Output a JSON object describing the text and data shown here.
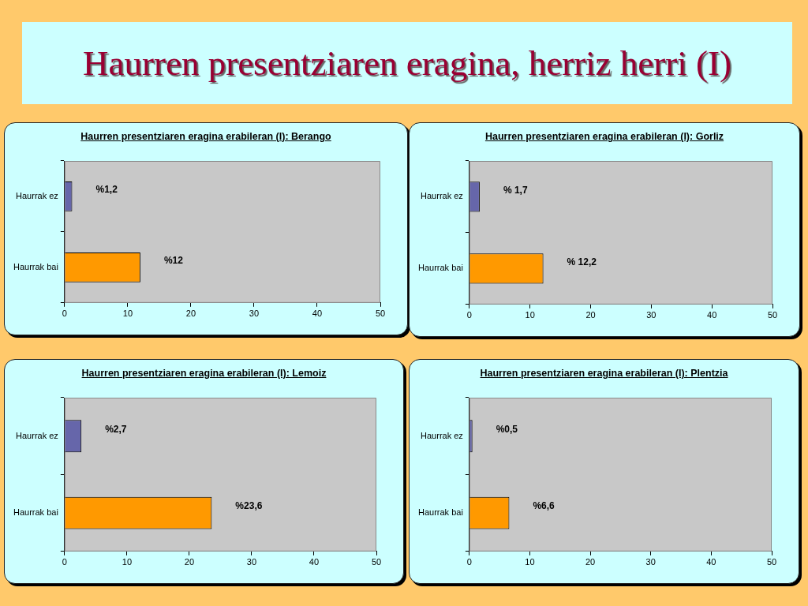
{
  "chart_data": [
    {
      "type": "other",
      "title": "Haurren presentziaren eragina, herriz herri (I)"
    },
    {
      "type": "bar",
      "orientation": "horizontal",
      "title": "Haurren presentziaren eragina erabileran (I): Berango",
      "categories": [
        "Haurrak ez",
        "Haurrak bai"
      ],
      "values": [
        1.2,
        12
      ],
      "colors": [
        "#6666aa",
        "#ff9900"
      ],
      "value_labels": [
        "%1,2",
        "%12"
      ],
      "xlim": [
        0,
        50
      ],
      "xticks": [
        0,
        10,
        20,
        30,
        40,
        50
      ]
    },
    {
      "type": "bar",
      "orientation": "horizontal",
      "title": "Haurren presentziaren eragina erabileran (I): Gorliz",
      "categories": [
        "Haurrak ez",
        "Haurrak bai"
      ],
      "values": [
        1.7,
        12.2
      ],
      "colors": [
        "#6666aa",
        "#ff9900"
      ],
      "value_labels": [
        "% 1,7",
        "% 12,2"
      ],
      "xlim": [
        0,
        50
      ],
      "xticks": [
        0,
        10,
        20,
        30,
        40,
        50
      ]
    },
    {
      "type": "bar",
      "orientation": "horizontal",
      "title": "Haurren presentziaren eragina erabileran (I): Lemoiz",
      "categories": [
        "Haurrak ez",
        "Haurrak bai"
      ],
      "values": [
        2.7,
        23.6
      ],
      "colors": [
        "#6666aa",
        "#ff9900"
      ],
      "value_labels": [
        "%2,7",
        "%23,6"
      ],
      "xlim": [
        0,
        50
      ],
      "xticks": [
        0,
        10,
        20,
        30,
        40,
        50
      ]
    },
    {
      "type": "bar",
      "orientation": "horizontal",
      "title": "Haurren presentziaren eragina erabileran (I): Plentzia",
      "categories": [
        "Haurrak ez",
        "Haurrak bai"
      ],
      "values": [
        0.5,
        6.6
      ],
      "colors": [
        "#6666aa",
        "#ff9900"
      ],
      "value_labels": [
        "%0,5",
        "%6,6"
      ],
      "xlim": [
        0,
        50
      ],
      "xticks": [
        0,
        10,
        20,
        30,
        40,
        50
      ]
    }
  ]
}
